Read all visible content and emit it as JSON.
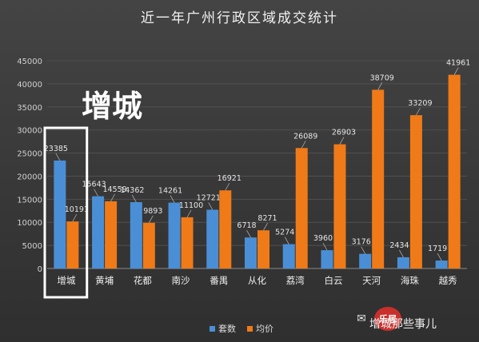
{
  "chart_data": {
    "type": "bar",
    "title": "近一年广州行政区域成交统计",
    "categories": [
      "增城",
      "黄埔",
      "花都",
      "南沙",
      "番禺",
      "从化",
      "荔湾",
      "白云",
      "天河",
      "海珠",
      "越秀"
    ],
    "series": [
      {
        "name": "套数",
        "color": "#4a8fd6",
        "values": [
          23385,
          15643,
          14362,
          14261,
          12721,
          6718,
          5274,
          3960,
          3176,
          2434,
          1719
        ]
      },
      {
        "name": "均价",
        "color": "#f07a18",
        "values": [
          10191,
          14559,
          9893,
          11100,
          16921,
          8271,
          26089,
          26903,
          38709,
          33209,
          41961
        ]
      }
    ],
    "ylim": [
      0,
      45000
    ],
    "yticks": [
      0,
      5000,
      10000,
      15000,
      20000,
      25000,
      30000,
      35000,
      40000,
      45000
    ],
    "grid": true,
    "legend_position": "bottom"
  },
  "callout": {
    "text": "增城",
    "highlight_category": "增城"
  },
  "watermark": {
    "brand": "乐居",
    "account": "增城那些事儿"
  }
}
